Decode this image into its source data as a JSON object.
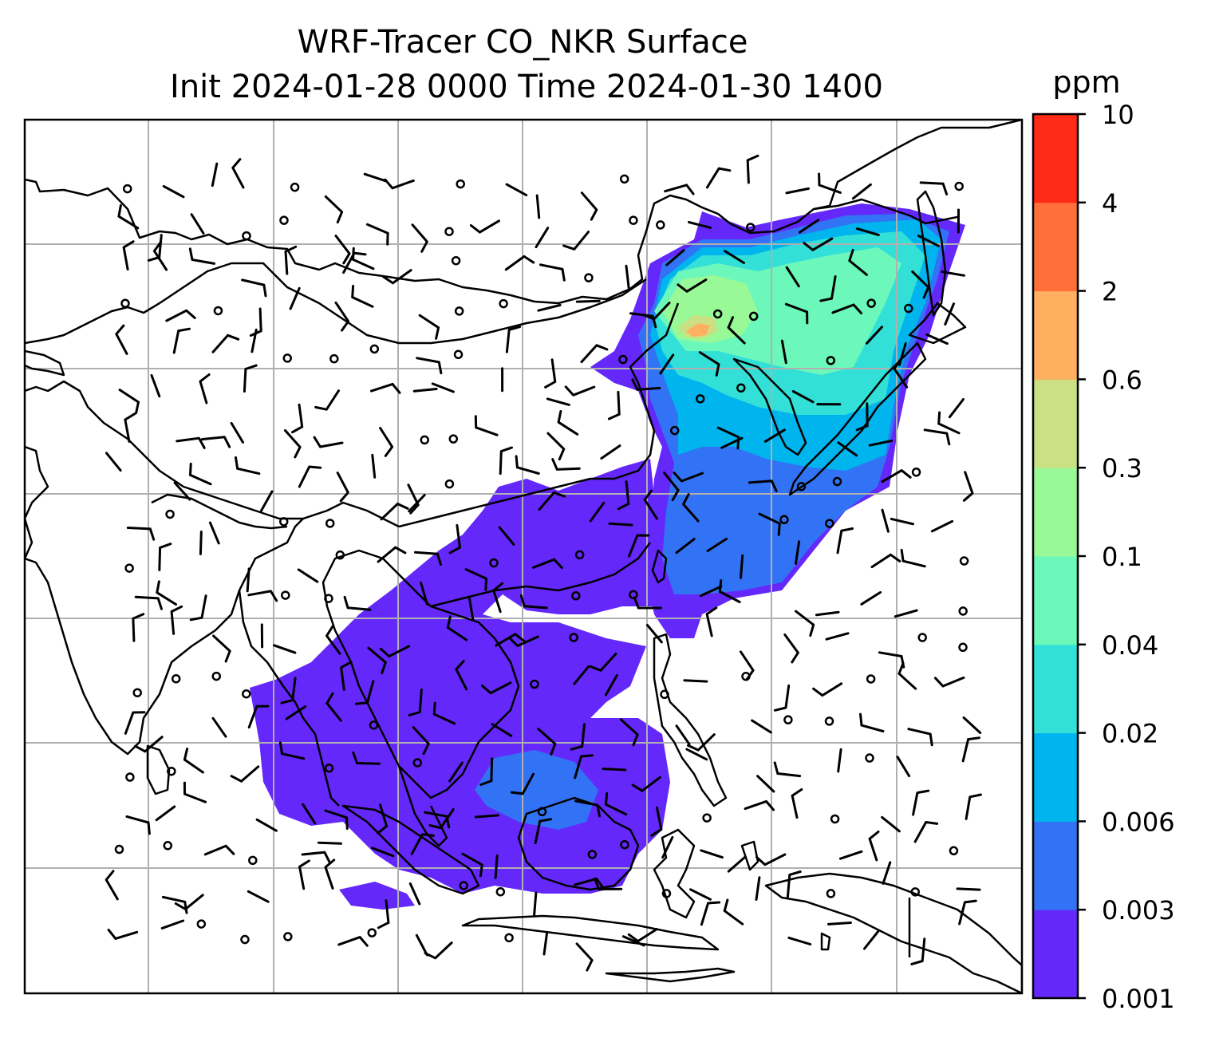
{
  "figure": {
    "title_line1": "WRF-Tracer CO_NKR Surface",
    "title_line2": "Init 2024-01-28 0000 Time 2024-01-30 1400"
  },
  "colorbar": {
    "unit": "ppm",
    "levels": [
      "0.001",
      "0.003",
      "0.006",
      "0.02",
      "0.04",
      "0.1",
      "0.3",
      "0.6",
      "2",
      "4",
      "10"
    ],
    "colors": [
      "#6428fa",
      "#3273f5",
      "#00b4ee",
      "#32e0d7",
      "#6cf7bb",
      "#98f996",
      "#cbe082",
      "#ffaf60",
      "#ff6f3a",
      "#ff2a18"
    ]
  },
  "map": {
    "gridlines": true,
    "coastline_color": "#000000",
    "gridline_color": "#b0b0b0",
    "field": "CO_NKR tracer concentration",
    "overlay": "wind barbs"
  }
}
